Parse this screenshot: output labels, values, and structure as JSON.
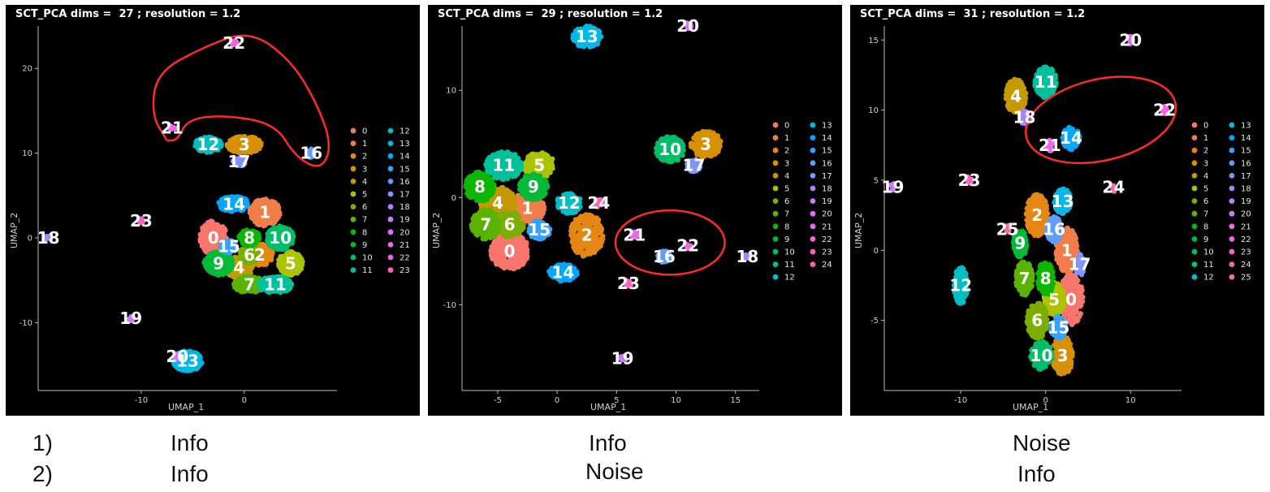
{
  "chart_data": [
    {
      "type": "scatter",
      "title": "SCT_PCA dims =  27 ; resolution = 1.2",
      "xlabel": "UMAP_1",
      "ylabel": "UMAP_2",
      "xlim": [
        -20,
        9
      ],
      "ylim": [
        -18,
        25
      ],
      "xticks": [
        -10,
        0
      ],
      "yticks": [
        -10,
        0,
        10,
        20
      ],
      "legend_position": "right",
      "legend_labels": [
        "0",
        "1",
        "2",
        "3",
        "4",
        "5",
        "6",
        "7",
        "8",
        "9",
        "10",
        "11",
        "12",
        "13",
        "14",
        "15",
        "16",
        "17",
        "18",
        "19",
        "20",
        "21",
        "22",
        "23"
      ],
      "clusters": [
        {
          "label": "0",
          "x": -3.0,
          "y": 0.0,
          "rx": 1.3,
          "ry": 2.0
        },
        {
          "label": "1",
          "x": 2.0,
          "y": 3.0,
          "rx": 1.5,
          "ry": 1.6
        },
        {
          "label": "2",
          "x": 1.5,
          "y": -2.0,
          "rx": 1.3,
          "ry": 1.3
        },
        {
          "label": "3",
          "x": 0.0,
          "y": 11.0,
          "rx": 1.7,
          "ry": 1.0
        },
        {
          "label": "4",
          "x": -0.5,
          "y": -3.5,
          "rx": 1.3,
          "ry": 1.3
        },
        {
          "label": "5",
          "x": 4.5,
          "y": -3.0,
          "rx": 1.2,
          "ry": 1.4
        },
        {
          "label": "6",
          "x": 0.5,
          "y": -2.0,
          "rx": 1.0,
          "ry": 1.0
        },
        {
          "label": "7",
          "x": 0.5,
          "y": -5.5,
          "rx": 1.5,
          "ry": 1.0
        },
        {
          "label": "8",
          "x": 0.5,
          "y": 0.0,
          "rx": 1.0,
          "ry": 1.0
        },
        {
          "label": "9",
          "x": -2.5,
          "y": -3.0,
          "rx": 1.4,
          "ry": 1.4
        },
        {
          "label": "10",
          "x": 3.5,
          "y": 0.0,
          "rx": 1.3,
          "ry": 1.4
        },
        {
          "label": "11",
          "x": 3.0,
          "y": -5.5,
          "rx": 1.6,
          "ry": 1.0
        },
        {
          "label": "12",
          "x": -3.5,
          "y": 11.0,
          "rx": 1.3,
          "ry": 0.9
        },
        {
          "label": "13",
          "x": -5.5,
          "y": -14.5,
          "rx": 1.4,
          "ry": 1.2
        },
        {
          "label": "14",
          "x": -1.0,
          "y": 4.0,
          "rx": 1.5,
          "ry": 0.9
        },
        {
          "label": "15",
          "x": -1.5,
          "y": -1.0,
          "rx": 0.8,
          "ry": 0.8
        },
        {
          "label": "16",
          "x": 6.5,
          "y": 10.0,
          "rx": 0.4,
          "ry": 0.5
        },
        {
          "label": "17",
          "x": -0.5,
          "y": 9.0,
          "rx": 0.6,
          "ry": 0.6
        },
        {
          "label": "18",
          "x": -19.0,
          "y": 0.0,
          "rx": 0.3,
          "ry": 0.3
        },
        {
          "label": "19",
          "x": -11.0,
          "y": -9.5,
          "rx": 0.3,
          "ry": 0.3
        },
        {
          "label": "20",
          "x": -6.5,
          "y": -14.0,
          "rx": 0.3,
          "ry": 0.3
        },
        {
          "label": "21",
          "x": -7.0,
          "y": 13.0,
          "rx": 0.3,
          "ry": 0.3
        },
        {
          "label": "22",
          "x": -1.0,
          "y": 23.0,
          "rx": 0.3,
          "ry": 0.3
        },
        {
          "label": "23",
          "x": -10.0,
          "y": 2.0,
          "rx": 0.3,
          "ry": 0.3
        }
      ],
      "annotations": [
        {
          "shape": "lasso",
          "points": [
            [
              -7.5,
              11.5
            ],
            [
              -9,
              14.5
            ],
            [
              -8.5,
              19.5
            ],
            [
              -4,
              22.5
            ],
            [
              0.5,
              24.5
            ],
            [
              4.5,
              21
            ],
            [
              7,
              16
            ],
            [
              8.5,
              11
            ],
            [
              7.5,
              8
            ],
            [
              5,
              9.5
            ],
            [
              3,
              13.5
            ],
            [
              -2,
              14.5
            ],
            [
              -5.5,
              14
            ],
            [
              -6.5,
              11.5
            ],
            [
              -7.5,
              11.5
            ]
          ],
          "color": "#ff2a2a"
        }
      ]
    },
    {
      "type": "scatter",
      "title": "SCT_PCA dims =  29 ; resolution = 1.2",
      "xlabel": "UMAP_1",
      "ylabel": "UMAP_2",
      "xlim": [
        -8,
        17
      ],
      "ylim": [
        -18,
        16
      ],
      "xticks": [
        -5,
        0,
        5,
        10,
        15
      ],
      "yticks": [
        -10,
        0,
        10
      ],
      "legend_position": "right",
      "legend_labels": [
        "0",
        "1",
        "2",
        "3",
        "4",
        "5",
        "6",
        "7",
        "8",
        "9",
        "10",
        "11",
        "12",
        "13",
        "14",
        "15",
        "16",
        "17",
        "18",
        "19",
        "20",
        "21",
        "22",
        "23",
        "24"
      ],
      "clusters": [
        {
          "label": "0",
          "x": -4.0,
          "y": -5.0,
          "rx": 1.6,
          "ry": 1.7
        },
        {
          "label": "1",
          "x": -2.5,
          "y": -1.0,
          "rx": 1.4,
          "ry": 1.5
        },
        {
          "label": "2",
          "x": 2.5,
          "y": -3.5,
          "rx": 1.4,
          "ry": 2.0
        },
        {
          "label": "3",
          "x": 12.5,
          "y": 5.0,
          "rx": 1.3,
          "ry": 1.2
        },
        {
          "label": "4",
          "x": -5.0,
          "y": -0.5,
          "rx": 1.5,
          "ry": 1.5
        },
        {
          "label": "5",
          "x": -1.5,
          "y": 3.0,
          "rx": 1.3,
          "ry": 1.2
        },
        {
          "label": "6",
          "x": -4.0,
          "y": -2.5,
          "rx": 1.2,
          "ry": 1.2
        },
        {
          "label": "7",
          "x": -6.0,
          "y": -2.5,
          "rx": 1.2,
          "ry": 1.4
        },
        {
          "label": "8",
          "x": -6.5,
          "y": 1.0,
          "rx": 1.2,
          "ry": 1.4
        },
        {
          "label": "9",
          "x": -2.0,
          "y": 1.0,
          "rx": 1.2,
          "ry": 1.2
        },
        {
          "label": "10",
          "x": 9.5,
          "y": 4.5,
          "rx": 1.2,
          "ry": 1.2
        },
        {
          "label": "11",
          "x": -4.5,
          "y": 3.0,
          "rx": 1.5,
          "ry": 1.3
        },
        {
          "label": "12",
          "x": 1.0,
          "y": -0.5,
          "rx": 1.0,
          "ry": 1.0
        },
        {
          "label": "13",
          "x": 2.5,
          "y": 15.0,
          "rx": 1.2,
          "ry": 1.0
        },
        {
          "label": "14",
          "x": 0.5,
          "y": -7.0,
          "rx": 1.2,
          "ry": 0.8
        },
        {
          "label": "15",
          "x": -1.5,
          "y": -3.0,
          "rx": 0.9,
          "ry": 0.9
        },
        {
          "label": "16",
          "x": 9.0,
          "y": -5.5,
          "rx": 0.6,
          "ry": 0.6
        },
        {
          "label": "17",
          "x": 11.5,
          "y": 3.0,
          "rx": 0.6,
          "ry": 0.6
        },
        {
          "label": "18",
          "x": 16.0,
          "y": -5.5,
          "rx": 0.3,
          "ry": 0.3
        },
        {
          "label": "19",
          "x": 5.5,
          "y": -15.0,
          "rx": 0.3,
          "ry": 0.3
        },
        {
          "label": "20",
          "x": 11.0,
          "y": 16.0,
          "rx": 0.3,
          "ry": 0.3
        },
        {
          "label": "21",
          "x": 6.5,
          "y": -3.5,
          "rx": 0.3,
          "ry": 0.3
        },
        {
          "label": "22",
          "x": 11.0,
          "y": -4.5,
          "rx": 0.3,
          "ry": 0.3
        },
        {
          "label": "23",
          "x": 6.0,
          "y": -8.0,
          "rx": 0.3,
          "ry": 0.3
        },
        {
          "label": "24",
          "x": 3.5,
          "y": -0.5,
          "rx": 0.4,
          "ry": 0.4
        }
      ],
      "annotations": [
        {
          "shape": "ellipse",
          "cx": 9.5,
          "cy": -4.2,
          "rx": 4.6,
          "ry": 3.0,
          "color": "#ff2a2a"
        }
      ]
    },
    {
      "type": "scatter",
      "title": "SCT_PCA dims =  31 ; resolution = 1.2",
      "xlabel": "UMAP_1",
      "ylabel": "UMAP_2",
      "xlim": [
        -19,
        16
      ],
      "ylim": [
        -10,
        16
      ],
      "xticks": [
        -10,
        0,
        10
      ],
      "yticks": [
        -5,
        0,
        5,
        10,
        15
      ],
      "legend_position": "right",
      "legend_labels": [
        "0",
        "1",
        "2",
        "3",
        "4",
        "5",
        "6",
        "7",
        "8",
        "9",
        "10",
        "11",
        "12",
        "13",
        "14",
        "15",
        "16",
        "17",
        "18",
        "19",
        "20",
        "21",
        "22",
        "23",
        "24",
        "25"
      ],
      "clusters": [
        {
          "label": "0",
          "x": 3.0,
          "y": -3.5,
          "rx": 1.4,
          "ry": 1.8
        },
        {
          "label": "1",
          "x": 2.5,
          "y": 0.0,
          "rx": 1.3,
          "ry": 1.6
        },
        {
          "label": "2",
          "x": -1.0,
          "y": 2.5,
          "rx": 1.3,
          "ry": 1.5
        },
        {
          "label": "3",
          "x": 2.0,
          "y": -7.5,
          "rx": 1.2,
          "ry": 1.4
        },
        {
          "label": "4",
          "x": -3.5,
          "y": 11.0,
          "rx": 1.2,
          "ry": 1.2
        },
        {
          "label": "5",
          "x": 1.0,
          "y": -3.5,
          "rx": 1.2,
          "ry": 1.2
        },
        {
          "label": "6",
          "x": -1.0,
          "y": -5.0,
          "rx": 1.2,
          "ry": 1.3
        },
        {
          "label": "7",
          "x": -2.5,
          "y": -2.0,
          "rx": 1.0,
          "ry": 1.2
        },
        {
          "label": "8",
          "x": 0.0,
          "y": -2.0,
          "rx": 1.0,
          "ry": 1.2
        },
        {
          "label": "9",
          "x": -3.0,
          "y": 0.5,
          "rx": 0.8,
          "ry": 1.0
        },
        {
          "label": "10",
          "x": -0.5,
          "y": -7.5,
          "rx": 1.3,
          "ry": 1.0
        },
        {
          "label": "11",
          "x": 0.0,
          "y": 12.0,
          "rx": 1.3,
          "ry": 1.1
        },
        {
          "label": "12",
          "x": -10.0,
          "y": -2.5,
          "rx": 0.8,
          "ry": 1.3
        },
        {
          "label": "13",
          "x": 2.0,
          "y": 3.5,
          "rx": 1.0,
          "ry": 0.9
        },
        {
          "label": "14",
          "x": 3.0,
          "y": 8.0,
          "rx": 1.0,
          "ry": 0.8
        },
        {
          "label": "15",
          "x": 1.5,
          "y": -5.5,
          "rx": 0.9,
          "ry": 0.8
        },
        {
          "label": "16",
          "x": 1.0,
          "y": 1.5,
          "rx": 0.9,
          "ry": 0.9
        },
        {
          "label": "17",
          "x": 4.0,
          "y": -1.0,
          "rx": 0.6,
          "ry": 0.8
        },
        {
          "label": "18",
          "x": -2.5,
          "y": 9.5,
          "rx": 0.6,
          "ry": 0.5
        },
        {
          "label": "19",
          "x": -18.0,
          "y": 4.5,
          "rx": 0.3,
          "ry": 0.3
        },
        {
          "label": "20",
          "x": 10.0,
          "y": 15.0,
          "rx": 0.3,
          "ry": 0.3
        },
        {
          "label": "21",
          "x": 0.5,
          "y": 7.5,
          "rx": 0.4,
          "ry": 0.4
        },
        {
          "label": "22",
          "x": 14.0,
          "y": 10.0,
          "rx": 0.3,
          "ry": 0.3
        },
        {
          "label": "23",
          "x": -9.0,
          "y": 5.0,
          "rx": 0.3,
          "ry": 0.3
        },
        {
          "label": "24",
          "x": 8.0,
          "y": 4.5,
          "rx": 0.3,
          "ry": 0.3
        },
        {
          "label": "25",
          "x": -4.5,
          "y": 1.5,
          "rx": 0.3,
          "ry": 0.3
        }
      ],
      "annotations": [
        {
          "shape": "ellipse",
          "cx": 6.5,
          "cy": 9.3,
          "rx": 9.0,
          "ry": 2.9,
          "rotate": -13,
          "color": "#ff2a2a"
        }
      ]
    }
  ],
  "palette": [
    "#f8766d",
    "#f17e4a",
    "#e68613",
    "#d89000",
    "#c59900",
    "#abc300",
    "#7cae00",
    "#5ab300",
    "#0cb702",
    "#00ba38",
    "#00be67",
    "#00c19a",
    "#00bfc4",
    "#00b8e7",
    "#00a9ff",
    "#35a2ff",
    "#619cff",
    "#8494ff",
    "#ab82ff",
    "#c77cff",
    "#de71f9",
    "#ed68ed",
    "#f863df",
    "#ff61c3",
    "#ff65ae",
    "#ff6c91"
  ],
  "annotation_color": "#ff2a2a",
  "captions": {
    "row1_number": "1)",
    "row2_number": "2)",
    "panel1_row1": "Info",
    "panel1_row2": "Info",
    "panel2_row1": "Info",
    "panel2_row2": "Noise",
    "panel3_row1": "Noise",
    "panel3_row2": "Info"
  }
}
